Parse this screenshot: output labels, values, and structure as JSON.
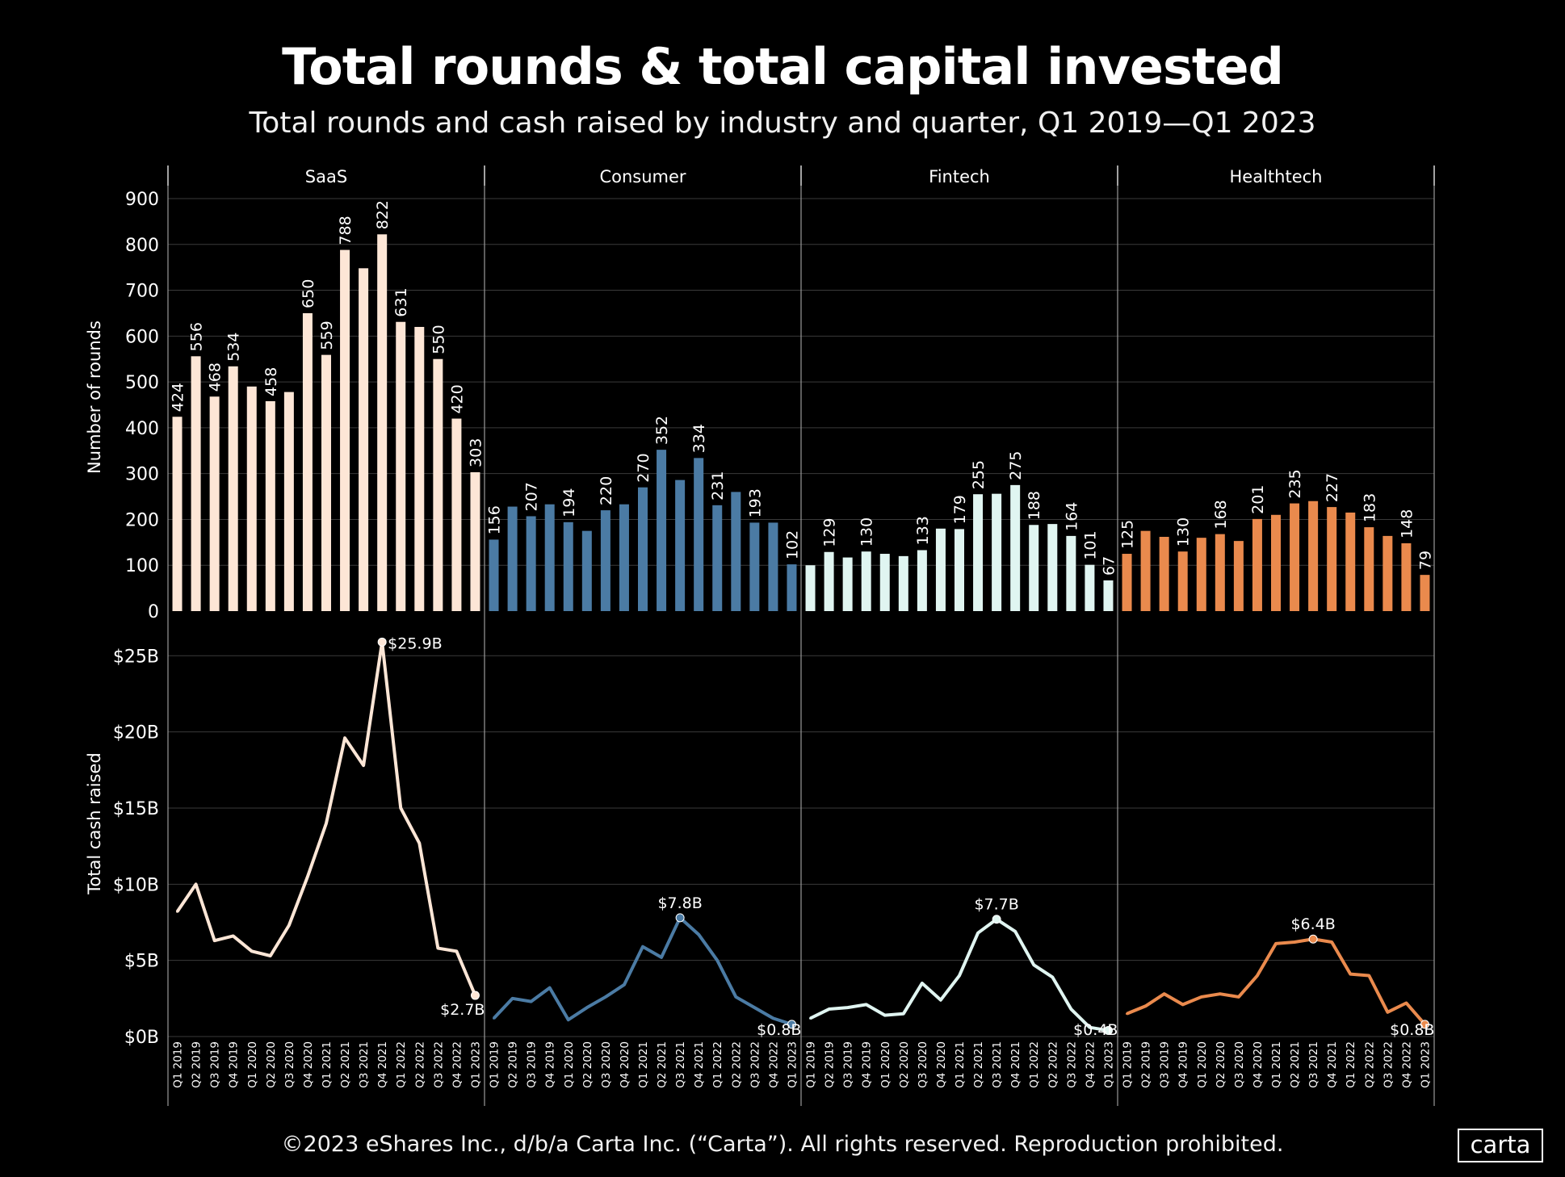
{
  "title": "Total rounds & total capital invested",
  "subtitle": "Total rounds and cash raised by industry and quarter, Q1 2019—Q1 2023",
  "footer": "©2023 eShares Inc., d/b/a Carta Inc. (“Carta”). All rights reserved. Reproduction prohibited.",
  "logo": "carta",
  "chart_data": {
    "type": "bar",
    "quarters": [
      "Q1 2019",
      "Q2 2019",
      "Q3 2019",
      "Q4 2019",
      "Q1 2020",
      "Q2 2020",
      "Q3 2020",
      "Q4 2020",
      "Q1 2021",
      "Q2 2021",
      "Q3 2021",
      "Q4 2021",
      "Q1 2022",
      "Q2 2022",
      "Q3 2022",
      "Q4 2022",
      "Q1 2023"
    ],
    "rounds_axis": {
      "label": "Number of rounds",
      "ylim": [
        0,
        900
      ],
      "ticks": [
        "0",
        "100",
        "200",
        "300",
        "400",
        "500",
        "600",
        "700",
        "800",
        "900"
      ],
      "tick_values": [
        0,
        100,
        200,
        300,
        400,
        500,
        600,
        700,
        800,
        900
      ]
    },
    "cash_axis": {
      "label": "Total cash raised",
      "ylim": [
        0,
        26.5
      ],
      "ticks": [
        "$0B",
        "$5B",
        "$10B",
        "$15B",
        "$20B",
        "$25B"
      ],
      "tick_values": [
        0,
        5,
        10,
        15,
        20,
        25
      ]
    },
    "panels": [
      {
        "name": "SaaS",
        "color": "#fde6d6",
        "rounds": [
          424,
          556,
          468,
          534,
          490,
          458,
          478,
          650,
          559,
          788,
          748,
          822,
          631,
          620,
          550,
          420,
          303
        ],
        "round_labels": [
          "424",
          "556",
          "468",
          "534",
          "",
          "458",
          "",
          "650",
          "559",
          "788",
          "",
          "822",
          "631",
          "",
          "550",
          "420",
          "303"
        ],
        "cash": [
          8.2,
          10.0,
          6.3,
          6.6,
          5.6,
          5.3,
          7.3,
          10.5,
          14.0,
          19.6,
          17.8,
          25.9,
          15.0,
          12.7,
          5.8,
          5.6,
          2.7
        ],
        "cash_labels": [
          {
            "index": 11,
            "text": "$25.9B"
          },
          {
            "index": 16,
            "text": "$2.7B"
          }
        ]
      },
      {
        "name": "Consumer",
        "color": "#4b7ba4",
        "rounds": [
          156,
          228,
          207,
          233,
          194,
          175,
          220,
          233,
          270,
          352,
          286,
          334,
          231,
          260,
          193,
          193,
          102
        ],
        "round_labels": [
          "156",
          "",
          "207",
          "",
          "194",
          "",
          "220",
          "",
          "270",
          "352",
          "",
          "334",
          "231",
          "",
          "193",
          "",
          "102"
        ],
        "cash": [
          1.2,
          2.5,
          2.3,
          3.2,
          1.1,
          1.9,
          2.6,
          3.4,
          5.9,
          5.2,
          7.8,
          6.7,
          5.0,
          2.6,
          1.9,
          1.2,
          0.8
        ],
        "cash_labels": [
          {
            "index": 10,
            "text": "$7.8B"
          },
          {
            "index": 16,
            "text": "$0.8B"
          }
        ]
      },
      {
        "name": "Fintech",
        "color": "#e0f5f1",
        "rounds": [
          100,
          129,
          117,
          130,
          125,
          120,
          133,
          180,
          179,
          255,
          256,
          275,
          188,
          190,
          164,
          101,
          67
        ],
        "round_labels": [
          "",
          "129",
          "",
          "130",
          "",
          "",
          "133",
          "",
          "179",
          "255",
          "",
          "275",
          "188",
          "",
          "164",
          "101",
          "67"
        ],
        "cash": [
          1.2,
          1.8,
          1.9,
          2.1,
          1.4,
          1.5,
          3.5,
          2.4,
          4.0,
          6.8,
          7.7,
          6.9,
          4.7,
          3.9,
          1.8,
          0.6,
          0.4
        ],
        "cash_labels": [
          {
            "index": 10,
            "text": "$7.7B"
          },
          {
            "index": 16,
            "text": "$0.4B"
          }
        ]
      },
      {
        "name": "Healthtech",
        "color": "#ea8a4d",
        "rounds": [
          125,
          175,
          162,
          130,
          160,
          168,
          153,
          201,
          210,
          235,
          240,
          227,
          215,
          183,
          164,
          148,
          79
        ],
        "round_labels": [
          "125",
          "",
          "",
          "130",
          "",
          "168",
          "",
          "201",
          "",
          "235",
          "",
          "227",
          "",
          "183",
          "",
          "148",
          "79"
        ],
        "cash": [
          1.5,
          2.0,
          2.8,
          2.1,
          2.6,
          2.8,
          2.6,
          4.0,
          6.1,
          6.2,
          6.4,
          6.2,
          4.1,
          4.0,
          1.6,
          2.2,
          0.8
        ],
        "cash_labels": [
          {
            "index": 10,
            "text": "$6.4B"
          },
          {
            "index": 16,
            "text": "$0.8B"
          }
        ]
      }
    ]
  }
}
